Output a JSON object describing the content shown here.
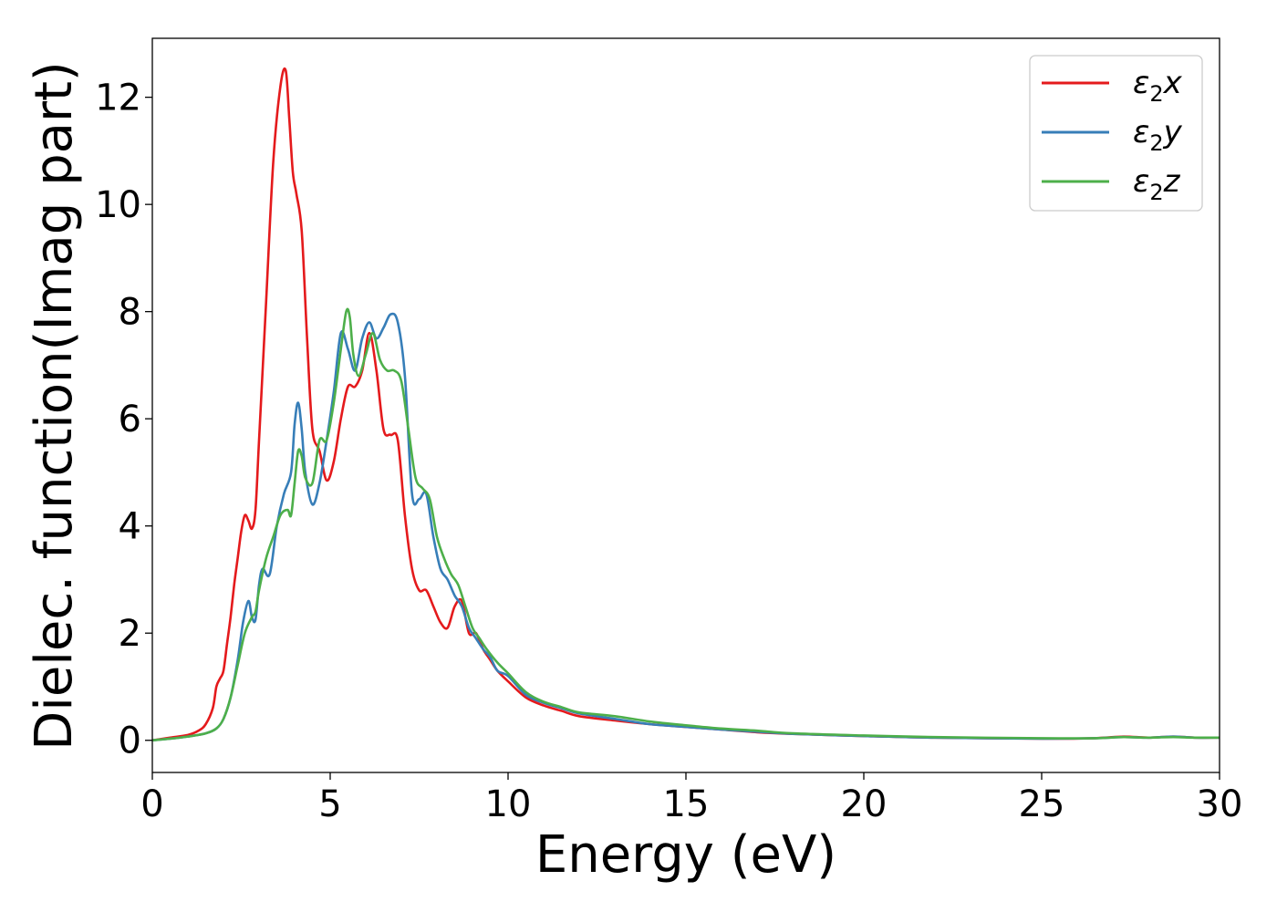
{
  "chart_data": {
    "type": "line",
    "title": "",
    "xlabel": "Energy (eV)",
    "ylabel": "Dielec. function(Imag part)",
    "xlim": [
      0,
      30
    ],
    "ylim": [
      -0.6,
      13.1
    ],
    "xticks": [
      0,
      5,
      10,
      15,
      20,
      25,
      30
    ],
    "yticks": [
      0,
      2,
      4,
      6,
      8,
      10,
      12
    ],
    "grid": false,
    "legend_position": "top-right",
    "series": [
      {
        "name": "ε₂x",
        "legend_base": "ε",
        "legend_sub": "2",
        "legend_suffix": "x",
        "color": "#e41a1c",
        "x": [
          0,
          0.5,
          1.0,
          1.3,
          1.5,
          1.7,
          1.8,
          1.9,
          2.0,
          2.1,
          2.2,
          2.3,
          2.4,
          2.5,
          2.6,
          2.7,
          2.8,
          2.9,
          3.0,
          3.2,
          3.4,
          3.6,
          3.75,
          3.85,
          3.95,
          4.05,
          4.2,
          4.35,
          4.5,
          4.7,
          4.9,
          5.1,
          5.3,
          5.5,
          5.7,
          5.9,
          6.1,
          6.3,
          6.5,
          6.7,
          6.9,
          7.1,
          7.3,
          7.5,
          7.7,
          7.9,
          8.1,
          8.3,
          8.5,
          8.7,
          8.9,
          9.1,
          9.3,
          9.5,
          9.7,
          10.0,
          10.5,
          11.0,
          11.5,
          12.0,
          13.0,
          14.0,
          15.0,
          16.0,
          17.0,
          18.0,
          20.0,
          22.0,
          25.0,
          26.5,
          27.3,
          28.0,
          28.7,
          29.3,
          30.0
        ],
        "y": [
          0.0,
          0.05,
          0.1,
          0.18,
          0.3,
          0.6,
          1.0,
          1.15,
          1.3,
          1.8,
          2.3,
          2.9,
          3.4,
          3.9,
          4.2,
          4.1,
          3.95,
          4.3,
          5.6,
          8.2,
          10.8,
          12.2,
          12.5,
          11.6,
          10.6,
          10.2,
          9.5,
          7.5,
          5.8,
          5.4,
          4.85,
          5.2,
          6.0,
          6.6,
          6.6,
          6.9,
          7.6,
          6.9,
          5.8,
          5.7,
          5.6,
          4.2,
          3.2,
          2.8,
          2.8,
          2.5,
          2.2,
          2.1,
          2.5,
          2.6,
          2.0,
          2.0,
          1.7,
          1.5,
          1.3,
          1.1,
          0.8,
          0.65,
          0.55,
          0.45,
          0.37,
          0.3,
          0.25,
          0.2,
          0.15,
          0.12,
          0.08,
          0.05,
          0.03,
          0.04,
          0.07,
          0.05,
          0.07,
          0.05,
          0.05
        ]
      },
      {
        "name": "ε₂y",
        "legend_base": "ε",
        "legend_sub": "2",
        "legend_suffix": "y",
        "color": "#377eb8",
        "x": [
          0,
          0.5,
          1.0,
          1.5,
          1.8,
          2.0,
          2.2,
          2.4,
          2.55,
          2.7,
          2.8,
          2.9,
          3.0,
          3.1,
          3.3,
          3.5,
          3.7,
          3.9,
          4.0,
          4.1,
          4.2,
          4.3,
          4.5,
          4.7,
          4.9,
          5.1,
          5.3,
          5.5,
          5.7,
          5.9,
          6.1,
          6.3,
          6.5,
          6.7,
          6.9,
          7.1,
          7.3,
          7.5,
          7.7,
          7.9,
          8.1,
          8.3,
          8.5,
          8.7,
          8.9,
          9.1,
          9.3,
          9.5,
          9.7,
          10.0,
          10.5,
          11.0,
          11.5,
          12.0,
          13.0,
          14.0,
          15.0,
          16.0,
          17.0,
          18.0,
          20.0,
          22.0,
          25.0,
          26.5,
          27.3,
          28.0,
          28.7,
          29.3,
          30.0
        ],
        "y": [
          0.0,
          0.03,
          0.07,
          0.13,
          0.22,
          0.4,
          0.8,
          1.5,
          2.2,
          2.6,
          2.3,
          2.25,
          2.9,
          3.2,
          3.1,
          4.0,
          4.6,
          5.0,
          5.9,
          6.3,
          5.8,
          5.0,
          4.4,
          4.8,
          5.6,
          6.5,
          7.6,
          7.3,
          6.9,
          7.5,
          7.8,
          7.5,
          7.7,
          7.95,
          7.8,
          6.8,
          4.6,
          4.5,
          4.6,
          3.8,
          3.2,
          3.0,
          2.7,
          2.5,
          2.1,
          1.9,
          1.7,
          1.55,
          1.3,
          1.2,
          0.85,
          0.7,
          0.6,
          0.5,
          0.4,
          0.3,
          0.25,
          0.2,
          0.16,
          0.12,
          0.08,
          0.05,
          0.03,
          0.04,
          0.06,
          0.05,
          0.07,
          0.05,
          0.05
        ]
      },
      {
        "name": "ε₂z",
        "legend_base": "ε",
        "legend_sub": "2",
        "legend_suffix": "z",
        "color": "#4daf4a",
        "x": [
          0,
          0.5,
          1.0,
          1.5,
          1.8,
          2.0,
          2.2,
          2.4,
          2.6,
          2.8,
          2.9,
          3.0,
          3.2,
          3.4,
          3.6,
          3.8,
          3.9,
          4.0,
          4.1,
          4.2,
          4.3,
          4.5,
          4.7,
          4.9,
          5.1,
          5.3,
          5.45,
          5.55,
          5.65,
          5.8,
          6.0,
          6.2,
          6.4,
          6.6,
          6.8,
          7.0,
          7.2,
          7.4,
          7.6,
          7.8,
          8.0,
          8.2,
          8.4,
          8.6,
          8.8,
          9.0,
          9.2,
          9.4,
          9.7,
          10.0,
          10.5,
          11.0,
          11.5,
          12.0,
          13.0,
          14.0,
          15.0,
          16.0,
          17.0,
          18.0,
          20.0,
          22.0,
          25.0,
          26.5,
          27.3,
          28.0,
          28.7,
          29.3,
          30.0
        ],
        "y": [
          0.0,
          0.03,
          0.07,
          0.13,
          0.22,
          0.4,
          0.8,
          1.4,
          2.0,
          2.3,
          2.4,
          2.8,
          3.4,
          3.8,
          4.2,
          4.3,
          4.2,
          4.8,
          5.4,
          5.3,
          4.9,
          4.8,
          5.6,
          5.6,
          6.3,
          7.3,
          8.0,
          7.9,
          7.2,
          6.8,
          7.2,
          7.6,
          7.1,
          6.9,
          6.9,
          6.7,
          5.8,
          4.9,
          4.7,
          4.5,
          3.8,
          3.4,
          3.1,
          2.9,
          2.5,
          2.1,
          1.9,
          1.7,
          1.45,
          1.25,
          0.9,
          0.72,
          0.62,
          0.52,
          0.45,
          0.35,
          0.28,
          0.22,
          0.18,
          0.13,
          0.09,
          0.06,
          0.04,
          0.04,
          0.06,
          0.05,
          0.06,
          0.05,
          0.05
        ]
      }
    ]
  }
}
